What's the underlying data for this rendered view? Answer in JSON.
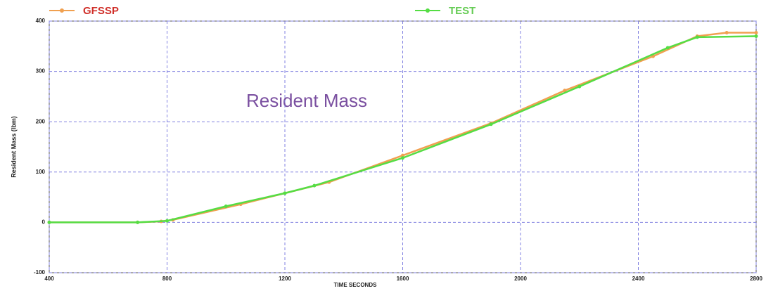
{
  "chart_data": {
    "type": "line",
    "annotation": "Resident Mass",
    "xlabel": "TIME SECONDS",
    "ylabel": "Resident Mass (lbm)",
    "series": [
      {
        "name": "GFSSP",
        "color": "#f0a050",
        "label_color": "#d0302a",
        "x": [
          400,
          700,
          780,
          820,
          1050,
          1200,
          1350,
          1600,
          1900,
          2150,
          2450,
          2600,
          2700,
          2800
        ],
        "values": [
          0,
          0,
          2,
          5,
          36,
          58,
          80,
          133,
          197,
          262,
          330,
          370,
          377,
          377
        ]
      },
      {
        "name": "TEST",
        "color": "#55dd44",
        "label_color": "#66cc55",
        "x": [
          400,
          700,
          800,
          1000,
          1200,
          1300,
          1600,
          1900,
          2200,
          2500,
          2600,
          2800
        ],
        "values": [
          0,
          0,
          3,
          32,
          58,
          73,
          128,
          195,
          270,
          347,
          368,
          370
        ]
      }
    ],
    "xlim": [
      400,
      2800
    ],
    "xticks": [
      400,
      800,
      1200,
      1600,
      2000,
      2400,
      2800
    ],
    "ylim": [
      -100,
      400
    ],
    "yticks": [
      -100,
      0,
      100,
      200,
      300,
      400
    ],
    "grid": true,
    "grid_color": "#8080e0"
  }
}
